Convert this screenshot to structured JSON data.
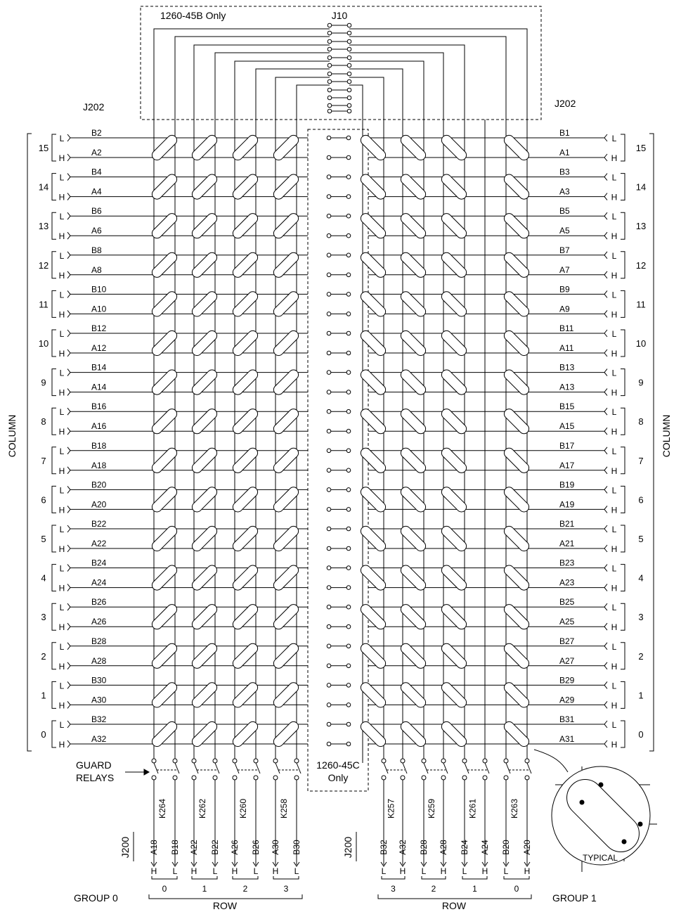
{
  "header": {
    "only_45b": "1260-45B Only",
    "j10": "J10",
    "j202_left": "J202",
    "j202_right": "J202",
    "only_45c": [
      "1260-45C",
      "Only"
    ]
  },
  "column_label": "COLUMN",
  "guard_relays": [
    "GUARD",
    "RELAYS"
  ],
  "typical": "TYPICAL",
  "connector_j200": "J200",
  "columns": [
    {
      "num": "15",
      "left_b": "B2",
      "left_a": "A2",
      "right_b": "B1",
      "right_a": "A1"
    },
    {
      "num": "14",
      "left_b": "B4",
      "left_a": "A4",
      "right_b": "B3",
      "right_a": "A3"
    },
    {
      "num": "13",
      "left_b": "B6",
      "left_a": "A6",
      "right_b": "B5",
      "right_a": "A5"
    },
    {
      "num": "12",
      "left_b": "B8",
      "left_a": "A8",
      "right_b": "B7",
      "right_a": "A7"
    },
    {
      "num": "11",
      "left_b": "B10",
      "left_a": "A10",
      "right_b": "B9",
      "right_a": "A9"
    },
    {
      "num": "10",
      "left_b": "B12",
      "left_a": "A12",
      "right_b": "B11",
      "right_a": "A11"
    },
    {
      "num": "9",
      "left_b": "B14",
      "left_a": "A14",
      "right_b": "B13",
      "right_a": "A13"
    },
    {
      "num": "8",
      "left_b": "B16",
      "left_a": "A16",
      "right_b": "B15",
      "right_a": "A15"
    },
    {
      "num": "7",
      "left_b": "B18",
      "left_a": "A18",
      "right_b": "B17",
      "right_a": "A17"
    },
    {
      "num": "6",
      "left_b": "B20",
      "left_a": "A20",
      "right_b": "B19",
      "right_a": "A19"
    },
    {
      "num": "5",
      "left_b": "B22",
      "left_a": "A22",
      "right_b": "B21",
      "right_a": "A21"
    },
    {
      "num": "4",
      "left_b": "B24",
      "left_a": "A24",
      "right_b": "B23",
      "right_a": "A23"
    },
    {
      "num": "3",
      "left_b": "B26",
      "left_a": "A26",
      "right_b": "B25",
      "right_a": "A25"
    },
    {
      "num": "2",
      "left_b": "B28",
      "left_a": "A28",
      "right_b": "B27",
      "right_a": "A27"
    },
    {
      "num": "1",
      "left_b": "B30",
      "left_a": "A30",
      "right_b": "B29",
      "right_a": "A29"
    },
    {
      "num": "0",
      "left_b": "B32",
      "left_a": "A32",
      "right_b": "B31",
      "right_a": "A31"
    }
  ],
  "groups": [
    {
      "name": "GROUP 0",
      "axis": "ROW",
      "relays": [
        {
          "relay": "K264",
          "pin1": "A18",
          "pin2": "B18",
          "l1": "H",
          "l2": "L",
          "row": "0"
        },
        {
          "relay": "K262",
          "pin1": "A22",
          "pin2": "B22",
          "l1": "H",
          "l2": "L",
          "row": "1"
        },
        {
          "relay": "K260",
          "pin1": "A26",
          "pin2": "B26",
          "l1": "H",
          "l2": "L",
          "row": "2"
        },
        {
          "relay": "K258",
          "pin1": "A30",
          "pin2": "B30",
          "l1": "H",
          "l2": "L",
          "row": "3"
        }
      ]
    },
    {
      "name": "GROUP 1",
      "axis": "ROW",
      "relays": [
        {
          "relay": "K257",
          "pin1": "B32",
          "pin2": "A32",
          "l1": "L",
          "l2": "H",
          "row": "3"
        },
        {
          "relay": "K259",
          "pin1": "B28",
          "pin2": "A28",
          "l1": "L",
          "l2": "H",
          "row": "2"
        },
        {
          "relay": "K261",
          "pin1": "B24",
          "pin2": "A24",
          "l1": "L",
          "l2": "H",
          "row": "1"
        },
        {
          "relay": "K263",
          "pin1": "B20",
          "pin2": "A20",
          "l1": "L",
          "l2": "H",
          "row": "0"
        }
      ]
    }
  ]
}
